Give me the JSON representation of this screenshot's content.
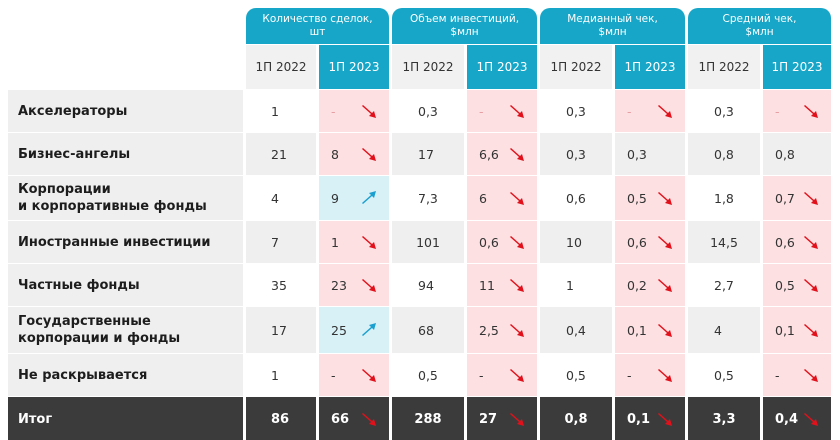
{
  "groups": [
    {
      "label": "Количество сделок,\nшт"
    },
    {
      "label": "Объем инвестиций,\n$млн"
    },
    {
      "label": "Медианный чек,\n$млн"
    },
    {
      "label": "Средний чек,\n$млн"
    }
  ],
  "years": {
    "prev": "1П 2022",
    "cur": "1П 2023"
  },
  "rows": [
    {
      "label": "Акселераторы",
      "cells": [
        "1",
        "-",
        "0,3",
        "-",
        "0,3",
        "-",
        "0,3",
        "-"
      ]
    },
    {
      "label": "Бизнес-ангелы",
      "cells": [
        "21",
        "8",
        "17",
        "6,6",
        "0,3",
        "0,3",
        "0,8",
        "0,8"
      ]
    },
    {
      "label": "Корпорации\nи корпоративные фонды",
      "cells": [
        "4",
        "9",
        "7,3",
        "6",
        "0,6",
        "0,5",
        "1,8",
        "0,7"
      ]
    },
    {
      "label": "Иностранные инвестиции",
      "cells": [
        "7",
        "1",
        "101",
        "0,6",
        "10",
        "0,6",
        "14,5",
        "0,6"
      ]
    },
    {
      "label": "Частные фонды",
      "cells": [
        "35",
        "23",
        "94",
        "11",
        "1",
        "0,2",
        "2,7",
        "0,5"
      ]
    },
    {
      "label": "Государственные\nкорпорации и фонды",
      "cells": [
        "17",
        "25",
        "68",
        "2,5",
        "0,4",
        "0,1",
        "4",
        "0,1"
      ]
    },
    {
      "label": "Не раскрывается",
      "cells": [
        "1",
        "-",
        "0,5",
        "-",
        "0,5",
        "-",
        "0,5",
        "-"
      ]
    }
  ],
  "total": {
    "label": "Итог",
    "cells": [
      "86",
      "66",
      "288",
      "27",
      "0,8",
      "0,1",
      "3,3",
      "0,4"
    ]
  },
  "trends": [
    [
      "down",
      "down",
      "down",
      "down"
    ],
    [
      "down",
      "down",
      "none",
      "none"
    ],
    [
      "up",
      "down",
      "down",
      "down"
    ],
    [
      "down",
      "down",
      "down",
      "down"
    ],
    [
      "down",
      "down",
      "down",
      "down"
    ],
    [
      "up",
      "down",
      "down",
      "down"
    ],
    [
      "down",
      "down",
      "down",
      "down"
    ]
  ],
  "total_trends": [
    "down",
    "down",
    "down",
    "down"
  ],
  "colors": {
    "accent": "#17a6c7",
    "down_bg": "#fde0e2",
    "up_bg": "#d7f1f7",
    "arrow_down": "#e1111b",
    "arrow_up": "#1a9fcf",
    "total_bg": "#3b3b3b"
  }
}
